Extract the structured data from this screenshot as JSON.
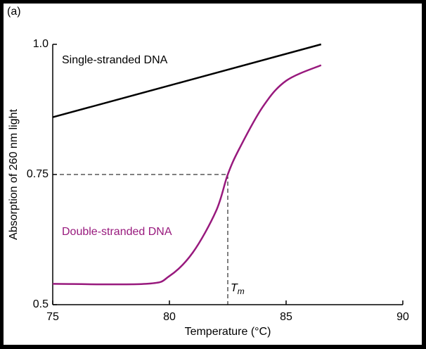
{
  "chart_data": {
    "type": "line",
    "panel_label": "(a)",
    "x_label": "Temperature (°C)",
    "y_label": "Absorption of 260 nm light",
    "xlim": [
      75,
      90
    ],
    "ylim": [
      0.5,
      1.0
    ],
    "xticks": [
      75,
      80,
      85,
      90
    ],
    "yticks": [
      0.5,
      0.75,
      {
        "value": 1,
        "label": "1.0"
      }
    ],
    "grid": false,
    "series": [
      {
        "name": "Single-stranded DNA",
        "color": "#000000",
        "x": [
          75,
          86.5
        ],
        "values": [
          0.86,
          1.0
        ]
      },
      {
        "name": "Double-stranded DNA",
        "color": "#98197d",
        "x": [
          75,
          79,
          80,
          81,
          82,
          82.5,
          83,
          84,
          85,
          86.5
        ],
        "values": [
          0.54,
          0.54,
          0.555,
          0.6,
          0.68,
          0.75,
          0.8,
          0.88,
          0.93,
          0.96
        ]
      }
    ],
    "tm": {
      "x": 82.5,
      "y": 0.75,
      "label": "T",
      "subscript": "m"
    }
  }
}
